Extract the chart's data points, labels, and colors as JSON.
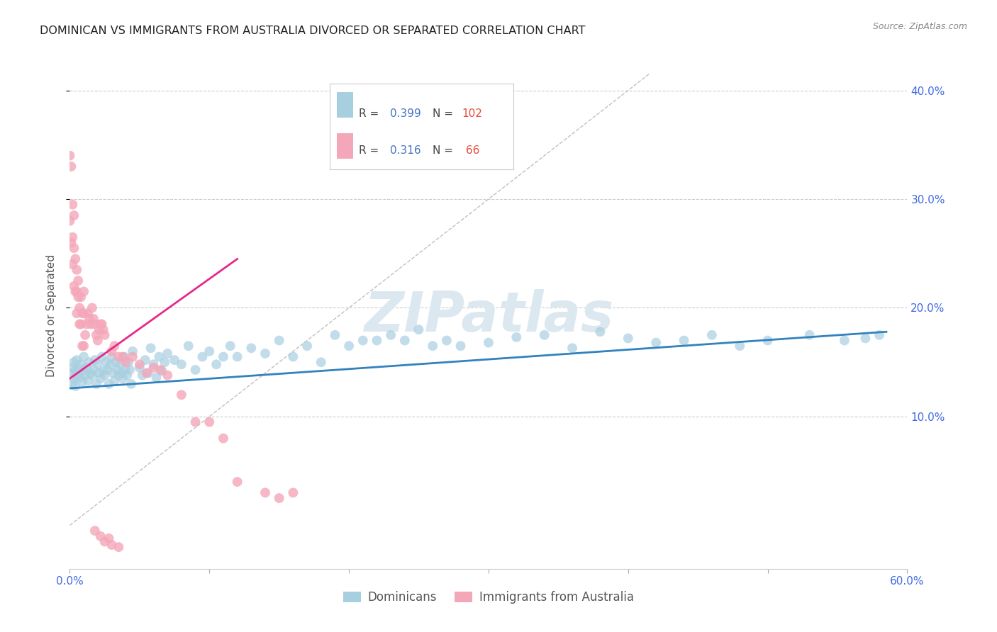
{
  "title": "DOMINICAN VS IMMIGRANTS FROM AUSTRALIA DIVORCED OR SEPARATED CORRELATION CHART",
  "source": "Source: ZipAtlas.com",
  "ylabel": "Divorced or Separated",
  "x_min": 0.0,
  "x_max": 0.6,
  "y_min": -0.04,
  "y_max": 0.425,
  "x_tick_positions": [
    0.0,
    0.1,
    0.2,
    0.3,
    0.4,
    0.5,
    0.6
  ],
  "x_tick_labels": [
    "0.0%",
    "",
    "",
    "",
    "",
    "",
    "60.0%"
  ],
  "y_ticks_right": [
    0.1,
    0.2,
    0.3,
    0.4
  ],
  "y_tick_labels_right": [
    "10.0%",
    "20.0%",
    "30.0%",
    "40.0%"
  ],
  "dominican_color": "#a8cfe0",
  "australia_color": "#f4a7b9",
  "trend_dominican_color": "#3182bd",
  "trend_australia_color": "#e7298a",
  "diagonal_color": "#c0c0c0",
  "watermark_text": "ZIPatlas",
  "watermark_color": "#dce8f0",
  "legend_box_colors": [
    "#a8cfe0",
    "#f4a7b9"
  ],
  "dominican_R": "0.399",
  "dominican_N": "102",
  "australia_R": "0.316",
  "australia_N": "66",
  "dominican_trend": {
    "x_start": 0.0,
    "x_end": 0.585,
    "y_start": 0.126,
    "y_end": 0.178
  },
  "australia_trend": {
    "x_start": 0.0,
    "x_end": 0.12,
    "y_start": 0.135,
    "y_end": 0.245
  },
  "diagonal_trend": {
    "x_start": 0.0,
    "x_end": 0.415,
    "y_start": 0.0,
    "y_end": 0.415
  },
  "dominican_scatter_x": [
    0.001,
    0.002,
    0.002,
    0.003,
    0.003,
    0.004,
    0.004,
    0.005,
    0.005,
    0.006,
    0.007,
    0.008,
    0.009,
    0.01,
    0.01,
    0.011,
    0.012,
    0.013,
    0.014,
    0.015,
    0.016,
    0.017,
    0.018,
    0.019,
    0.02,
    0.021,
    0.022,
    0.023,
    0.024,
    0.025,
    0.026,
    0.027,
    0.028,
    0.029,
    0.03,
    0.031,
    0.032,
    0.033,
    0.034,
    0.035,
    0.036,
    0.037,
    0.038,
    0.039,
    0.04,
    0.041,
    0.042,
    0.043,
    0.044,
    0.045,
    0.05,
    0.052,
    0.054,
    0.056,
    0.058,
    0.06,
    0.062,
    0.064,
    0.066,
    0.068,
    0.07,
    0.075,
    0.08,
    0.085,
    0.09,
    0.095,
    0.1,
    0.105,
    0.11,
    0.115,
    0.12,
    0.13,
    0.14,
    0.15,
    0.16,
    0.17,
    0.18,
    0.19,
    0.2,
    0.21,
    0.22,
    0.23,
    0.24,
    0.25,
    0.26,
    0.27,
    0.28,
    0.3,
    0.32,
    0.34,
    0.36,
    0.38,
    0.4,
    0.42,
    0.44,
    0.46,
    0.48,
    0.5,
    0.53,
    0.555,
    0.57,
    0.58
  ],
  "dominican_scatter_y": [
    0.14,
    0.145,
    0.13,
    0.15,
    0.135,
    0.142,
    0.128,
    0.138,
    0.152,
    0.144,
    0.136,
    0.148,
    0.132,
    0.155,
    0.142,
    0.138,
    0.145,
    0.133,
    0.15,
    0.14,
    0.138,
    0.143,
    0.152,
    0.13,
    0.148,
    0.14,
    0.135,
    0.155,
    0.142,
    0.138,
    0.15,
    0.143,
    0.13,
    0.148,
    0.155,
    0.14,
    0.133,
    0.15,
    0.143,
    0.138,
    0.148,
    0.14,
    0.135,
    0.155,
    0.143,
    0.138,
    0.15,
    0.143,
    0.13,
    0.16,
    0.145,
    0.138,
    0.152,
    0.14,
    0.163,
    0.148,
    0.136,
    0.155,
    0.142,
    0.15,
    0.158,
    0.152,
    0.148,
    0.165,
    0.143,
    0.155,
    0.16,
    0.148,
    0.155,
    0.165,
    0.155,
    0.163,
    0.158,
    0.17,
    0.155,
    0.165,
    0.15,
    0.175,
    0.165,
    0.17,
    0.17,
    0.175,
    0.17,
    0.18,
    0.165,
    0.17,
    0.165,
    0.168,
    0.173,
    0.175,
    0.163,
    0.178,
    0.172,
    0.168,
    0.17,
    0.175,
    0.165,
    0.17,
    0.175,
    0.17,
    0.172,
    0.175
  ],
  "australia_scatter_x": [
    0.0,
    0.0,
    0.001,
    0.001,
    0.002,
    0.002,
    0.002,
    0.003,
    0.003,
    0.003,
    0.004,
    0.004,
    0.005,
    0.005,
    0.005,
    0.006,
    0.006,
    0.007,
    0.007,
    0.008,
    0.008,
    0.009,
    0.009,
    0.01,
    0.01,
    0.01,
    0.011,
    0.012,
    0.013,
    0.014,
    0.015,
    0.016,
    0.017,
    0.018,
    0.019,
    0.02,
    0.021,
    0.022,
    0.023,
    0.024,
    0.025,
    0.03,
    0.032,
    0.035,
    0.038,
    0.04,
    0.045,
    0.05,
    0.055,
    0.06,
    0.065,
    0.07,
    0.08,
    0.09,
    0.1,
    0.11,
    0.12,
    0.14,
    0.15,
    0.16,
    0.018,
    0.022,
    0.025,
    0.028,
    0.03,
    0.035
  ],
  "australia_scatter_y": [
    0.34,
    0.28,
    0.33,
    0.26,
    0.295,
    0.265,
    0.24,
    0.285,
    0.255,
    0.22,
    0.245,
    0.215,
    0.235,
    0.215,
    0.195,
    0.225,
    0.21,
    0.2,
    0.185,
    0.21,
    0.185,
    0.195,
    0.165,
    0.215,
    0.195,
    0.165,
    0.175,
    0.185,
    0.195,
    0.19,
    0.185,
    0.2,
    0.19,
    0.185,
    0.175,
    0.17,
    0.18,
    0.185,
    0.185,
    0.18,
    0.175,
    0.16,
    0.165,
    0.155,
    0.155,
    0.15,
    0.155,
    0.148,
    0.14,
    0.145,
    0.143,
    0.138,
    0.12,
    0.095,
    0.095,
    0.08,
    0.04,
    0.03,
    0.025,
    0.03,
    -0.005,
    -0.01,
    -0.015,
    -0.012,
    -0.018,
    -0.02
  ]
}
